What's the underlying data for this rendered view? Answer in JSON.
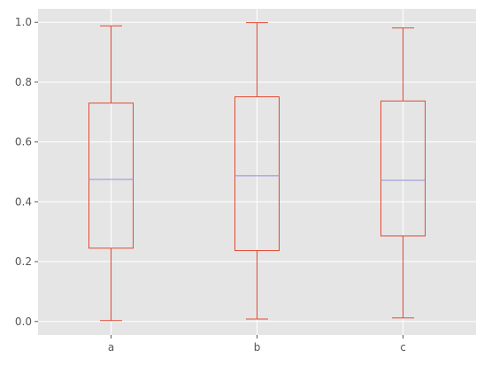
{
  "chart_data": {
    "type": "box",
    "categories": [
      "a",
      "b",
      "c"
    ],
    "boxes": [
      {
        "category": "a",
        "whisker_low": 0.003,
        "q1": 0.245,
        "median": 0.475,
        "q3": 0.73,
        "whisker_high": 0.988
      },
      {
        "category": "b",
        "whisker_low": 0.008,
        "q1": 0.237,
        "median": 0.487,
        "q3": 0.751,
        "whisker_high": 0.999
      },
      {
        "category": "c",
        "whisker_low": 0.012,
        "q1": 0.286,
        "median": 0.472,
        "q3": 0.737,
        "whisker_high": 0.981
      }
    ],
    "yticks": [
      0.0,
      0.2,
      0.4,
      0.6,
      0.8,
      1.0
    ],
    "ytick_labels": [
      "0.0",
      "0.2",
      "0.4",
      "0.6",
      "0.8",
      "1.0"
    ],
    "ylim": [
      -0.045,
      1.045
    ],
    "grid": true,
    "colors": {
      "background": "#e5e5e5",
      "grid": "#ffffff",
      "box": "#e24a33",
      "median": "#8e8fdc"
    }
  }
}
